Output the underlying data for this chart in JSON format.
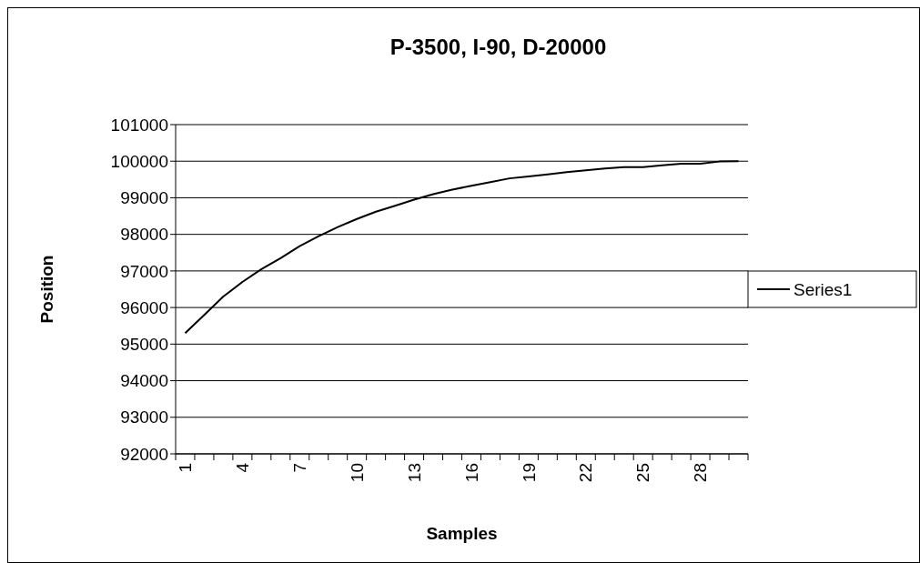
{
  "chart_data": {
    "type": "line",
    "title": "P-3500, I-90, D-20000",
    "xlabel": "Samples",
    "ylabel": "Position",
    "categories": [
      "1",
      null,
      null,
      "4",
      null,
      null,
      "7",
      null,
      null,
      "10",
      null,
      null,
      "13",
      null,
      null,
      "16",
      null,
      null,
      "19",
      null,
      null,
      "22",
      null,
      null,
      "25",
      null,
      null,
      "28",
      null,
      null
    ],
    "series": [
      {
        "name": "Series1",
        "color": "#000000",
        "values": [
          95300,
          95800,
          96300,
          96700,
          97050,
          97350,
          97680,
          97950,
          98200,
          98420,
          98620,
          98780,
          98950,
          99100,
          99220,
          99330,
          99430,
          99530,
          99580,
          99640,
          99700,
          99750,
          99800,
          99840,
          99840,
          99890,
          99930,
          99930,
          99990,
          100000
        ]
      }
    ],
    "ylim": [
      92000,
      101000
    ],
    "yticks": [
      92000,
      93000,
      94000,
      95000,
      96000,
      97000,
      98000,
      99000,
      100000,
      101000
    ],
    "grid": "y",
    "legend": "right",
    "marker": "none",
    "line_style": "solid"
  }
}
